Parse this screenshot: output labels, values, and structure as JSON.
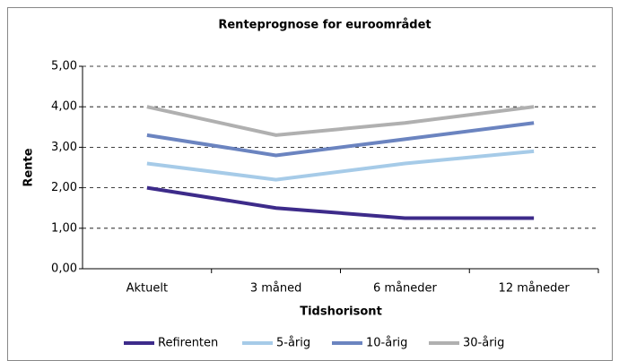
{
  "chart_data": {
    "type": "line",
    "title": "Renteprognose for euroområdet",
    "x_label": "Tidshorisont",
    "y_label": "Rente",
    "categories": [
      "Aktuelt",
      "3 måned",
      "6 måneder",
      "12 måneder"
    ],
    "series": [
      {
        "name": "Refirenten",
        "color": "#3d2b8a",
        "values": [
          2.0,
          1.5,
          1.25,
          1.25
        ]
      },
      {
        "name": "5-årig",
        "color": "#a6cbe8",
        "values": [
          2.6,
          2.2,
          2.6,
          2.9
        ]
      },
      {
        "name": "10-årig",
        "color": "#6b84c0",
        "values": [
          3.3,
          2.8,
          3.2,
          3.6
        ]
      },
      {
        "name": "30-årig",
        "color": "#b0b0b0",
        "values": [
          4.0,
          3.3,
          3.6,
          4.0
        ]
      }
    ],
    "ylim": [
      0,
      5
    ],
    "yticks": [
      {
        "value": 0,
        "label": "0,00"
      },
      {
        "value": 1,
        "label": "1,00"
      },
      {
        "value": 2,
        "label": "2,00"
      },
      {
        "value": 3,
        "label": "3,00"
      },
      {
        "value": 4,
        "label": "4,00"
      },
      {
        "value": 5,
        "label": "5,00"
      }
    ],
    "grid": true,
    "legend": "bottom"
  }
}
